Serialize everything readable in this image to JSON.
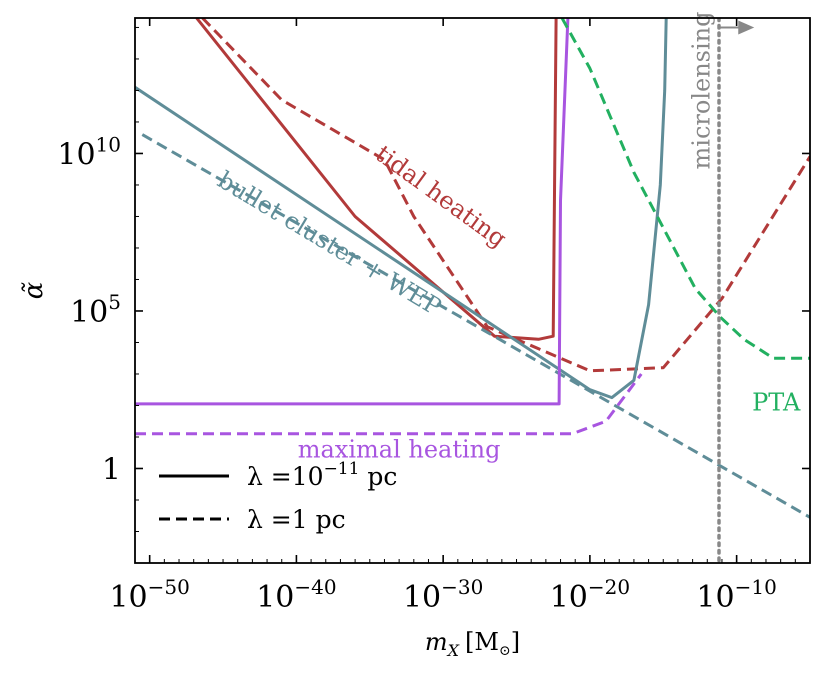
{
  "chart_data": {
    "type": "line",
    "xscale": "log10",
    "yscale": "log10",
    "xlim": [
      -51,
      -5
    ],
    "ylim": [
      -3,
      14.3
    ],
    "xlabel": {
      "base": "m",
      "sub": "X",
      "unit": "[M",
      "unit_close": "]",
      "sun": "⊙"
    },
    "ylabel": "α̃",
    "x_ticks": [
      {
        "v": -50,
        "base": "10",
        "exp": "−50"
      },
      {
        "v": -40,
        "base": "10",
        "exp": "−40"
      },
      {
        "v": -30,
        "base": "10",
        "exp": "−30"
      },
      {
        "v": -20,
        "base": "10",
        "exp": "−20"
      },
      {
        "v": -10,
        "base": "10",
        "exp": "−10"
      }
    ],
    "y_ticks": [
      {
        "v": 0,
        "base": "1",
        "exp": ""
      },
      {
        "v": 5,
        "base": "10",
        "exp": "5"
      },
      {
        "v": 10,
        "base": "10",
        "exp": "10"
      }
    ],
    "series": [
      {
        "name": "tidal heating (λ=10⁻¹¹ pc)",
        "color": "#b23a3a",
        "dash": "solid",
        "points": [
          [
            -46.8,
            14.3
          ],
          [
            -36,
            8
          ],
          [
            -26.5,
            4.2
          ],
          [
            -23.5,
            4.1
          ],
          [
            -22.5,
            4.2
          ],
          [
            -22.3,
            14.3
          ]
        ]
      },
      {
        "name": "tidal heating (λ=1 pc)",
        "color": "#b23a3a",
        "dash": "dashed",
        "points": [
          [
            -46.4,
            14.3
          ],
          [
            -41,
            11.7
          ],
          [
            -34,
            9.8
          ],
          [
            -32,
            8
          ],
          [
            -27,
            4.5
          ],
          [
            -20,
            3.1
          ],
          [
            -15,
            3.2
          ],
          [
            -11,
            5.4
          ],
          [
            -5,
            9.9
          ]
        ]
      },
      {
        "name": "bullet cluster + WEP (λ=10⁻¹¹ pc)",
        "color": "#5f8d98",
        "dash": "solid",
        "points": [
          [
            -51,
            12.1
          ],
          [
            -20,
            2.5
          ],
          [
            -18.5,
            2.25
          ],
          [
            -17,
            2.8
          ],
          [
            -16,
            5.2
          ],
          [
            -15.2,
            9
          ],
          [
            -14.9,
            12
          ],
          [
            -14.8,
            14.3
          ]
        ]
      },
      {
        "name": "bullet cluster + WEP (λ=1 pc)",
        "color": "#5f8d98",
        "dash": "dashed",
        "points": [
          [
            -50.5,
            10.6
          ],
          [
            -5,
            -1.55
          ]
        ]
      },
      {
        "name": "maximal heating (λ=10⁻¹¹ pc)",
        "color": "#a855e0",
        "dash": "solid",
        "points": [
          [
            -51,
            2.05
          ],
          [
            -22.1,
            2.05
          ],
          [
            -22,
            8.5
          ],
          [
            -21.5,
            14.3
          ]
        ]
      },
      {
        "name": "maximal heating (λ=1 pc)",
        "color": "#a855e0",
        "dash": "dashed",
        "points": [
          [
            -51,
            1.1
          ],
          [
            -21.2,
            1.1
          ],
          [
            -18.9,
            1.5
          ],
          [
            -16.5,
            3
          ]
        ]
      },
      {
        "name": "PTA",
        "color": "#22b060",
        "dash": "dashed",
        "points": [
          [
            -21.9,
            14.3
          ],
          [
            -20,
            12.7
          ],
          [
            -17,
            9.4
          ],
          [
            -14.5,
            7.2
          ],
          [
            -12.8,
            5.7
          ],
          [
            -11.1,
            4.8
          ],
          [
            -9.5,
            4.1
          ],
          [
            -7.5,
            3.5
          ],
          [
            -5,
            3.5
          ]
        ]
      },
      {
        "name": "microlensing",
        "color": "#888888",
        "dash": "dotted",
        "points": [
          [
            -11.2,
            14.3
          ],
          [
            -11.2,
            -3
          ]
        ]
      }
    ],
    "annotations": [
      {
        "text": "tidal heating",
        "color": "#b23a3a",
        "x": -30.2,
        "y": 8.6,
        "rotate": 36
      },
      {
        "text": "bullet cluster + WEP",
        "color": "#5f8d98",
        "x": -37.8,
        "y": 7.1,
        "rotate": 31
      },
      {
        "text": "maximal heating",
        "color": "#a855e0",
        "x": -33,
        "y": 0.55,
        "rotate": 0
      },
      {
        "text": "PTA",
        "color": "#22b060",
        "x": -7.3,
        "y": 2.05,
        "rotate": 0
      },
      {
        "text": "microlensing",
        "color": "#888888",
        "x": -12.3,
        "y": 12,
        "rotate": -90
      }
    ],
    "microlensing_arrow": {
      "x_from": -11.2,
      "x_to": -8.8,
      "y": 14.0,
      "color": "#888888"
    },
    "legend": {
      "placement": "bottom-left",
      "entries": [
        {
          "style": "solid",
          "prefix": "λ =10",
          "exp": "−11",
          "suffix": " pc"
        },
        {
          "style": "dashed",
          "prefix": "λ =1",
          "exp": "",
          "suffix": " pc"
        }
      ]
    }
  }
}
